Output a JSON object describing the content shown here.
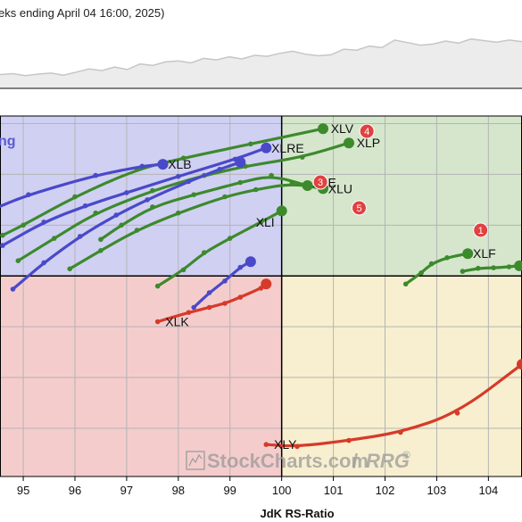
{
  "header": {
    "text": "eks ending April 04 16:00, 2025)"
  },
  "watermark": {
    "brand": "StockCharts.com",
    "slash": "/",
    "product": "RRG",
    "mark": "®"
  },
  "quadrant_labels": {
    "improving_partial": "ng"
  },
  "colors": {
    "improving": "#d0d0f3",
    "leading": "#d5e6cc",
    "weakening": "#f7efcf",
    "lagging": "#f5cccc",
    "grid": "#b4b4b4",
    "axis": "#000000",
    "header_bg": "#ececec",
    "header_line": "#c6c6c6",
    "badge": "#e04141"
  },
  "chart_data": {
    "type": "scatter",
    "title": "",
    "xlabel": "JdK RS-Ratio",
    "ylabel": "",
    "xlim": [
      94.55,
      104.65
    ],
    "ylim": [
      96.05,
      103.15
    ],
    "x_ticks": [
      95,
      96,
      97,
      98,
      99,
      100,
      101,
      102,
      103,
      104
    ],
    "center": {
      "x": 100,
      "y": 100
    },
    "grid": true,
    "series": [
      {
        "name": "XLV",
        "color": "#3c8a2c",
        "points": [
          [
            94.6,
            100.8
          ],
          [
            95.0,
            101.0
          ],
          [
            96.0,
            101.56
          ],
          [
            97.2,
            102.1
          ],
          [
            98.1,
            102.32
          ],
          [
            99.4,
            102.6
          ],
          [
            100.8,
            102.9
          ]
        ]
      },
      {
        "name": "XLP",
        "color": "#3c8a2c",
        "points": [
          [
            94.9,
            100.3
          ],
          [
            95.6,
            100.74
          ],
          [
            96.4,
            101.24
          ],
          [
            97.5,
            101.68
          ],
          [
            98.5,
            101.98
          ],
          [
            99.3,
            102.16
          ],
          [
            100.4,
            102.34
          ],
          [
            101.3,
            102.62
          ]
        ]
      },
      {
        "name": "XLE",
        "color": "#3c8a2c",
        "points": [
          [
            96.5,
            100.72
          ],
          [
            96.9,
            101.0
          ],
          [
            97.5,
            101.36
          ],
          [
            98.3,
            101.6
          ],
          [
            99.2,
            101.84
          ],
          [
            99.8,
            101.98
          ],
          [
            100.5,
            101.78
          ]
        ]
      },
      {
        "name": "XLU",
        "color": "#3c8a2c",
        "points": [
          [
            95.9,
            100.14
          ],
          [
            96.5,
            100.5
          ],
          [
            97.2,
            100.9
          ],
          [
            98.0,
            101.24
          ],
          [
            98.9,
            101.56
          ],
          [
            99.5,
            101.7
          ],
          [
            100.2,
            101.82
          ],
          [
            100.8,
            101.72
          ]
        ]
      },
      {
        "name": "XLI",
        "color": "#3c8a2c",
        "points": [
          [
            97.6,
            99.8
          ],
          [
            98.1,
            100.12
          ],
          [
            98.5,
            100.46
          ],
          [
            99.0,
            100.74
          ],
          [
            99.6,
            101.06
          ],
          [
            100.0,
            101.28
          ]
        ]
      },
      {
        "name": "XLF",
        "color": "#3c8a2c",
        "points": [
          [
            102.4,
            99.84
          ],
          [
            102.7,
            100.06
          ],
          [
            102.9,
            100.24
          ],
          [
            103.2,
            100.36
          ],
          [
            103.6,
            100.44
          ]
        ]
      },
      {
        "name": "XLF2",
        "color": "#3c8a2c",
        "points": [
          [
            103.5,
            100.09
          ],
          [
            103.8,
            100.15
          ],
          [
            104.1,
            100.16
          ],
          [
            104.4,
            100.18
          ],
          [
            104.6,
            100.2
          ]
        ]
      },
      {
        "name": "XLRE",
        "color": "#4a49c9",
        "points": [
          [
            94.6,
            100.6
          ],
          [
            95.4,
            101.06
          ],
          [
            96.2,
            101.38
          ],
          [
            97.0,
            101.64
          ],
          [
            98.0,
            101.96
          ],
          [
            99.1,
            102.3
          ],
          [
            99.7,
            102.52
          ]
        ]
      },
      {
        "name": "XLB",
        "color": "#4a49c9",
        "points": [
          [
            94.5,
            101.35
          ],
          [
            95.1,
            101.6
          ],
          [
            96.4,
            101.98
          ],
          [
            97.3,
            102.16
          ],
          [
            97.7,
            102.2
          ]
        ]
      },
      {
        "name": "XLI_blue",
        "color": "#4a49c9",
        "points": [
          [
            94.8,
            99.74
          ],
          [
            95.4,
            100.26
          ],
          [
            96.1,
            100.78
          ],
          [
            96.8,
            101.2
          ],
          [
            97.4,
            101.5
          ],
          [
            98.2,
            101.86
          ],
          [
            98.8,
            102.1
          ],
          [
            99.2,
            102.24
          ]
        ]
      },
      {
        "name": "XLU_blue",
        "color": "#4a49c9",
        "points": [
          [
            98.3,
            99.38
          ],
          [
            98.6,
            99.67
          ],
          [
            98.9,
            99.9
          ],
          [
            99.2,
            100.17
          ],
          [
            99.4,
            100.28
          ]
        ]
      },
      {
        "name": "XLK",
        "color": "#d63a2a",
        "points": [
          [
            97.6,
            99.1
          ],
          [
            98.2,
            99.28
          ],
          [
            98.6,
            99.38
          ],
          [
            98.9,
            99.46
          ],
          [
            99.2,
            99.58
          ],
          [
            99.6,
            99.76
          ],
          [
            99.7,
            99.84
          ]
        ]
      },
      {
        "name": "XLY",
        "color": "#d63a2a",
        "points": [
          [
            99.7,
            96.68
          ],
          [
            100.3,
            96.64
          ],
          [
            101.3,
            96.76
          ],
          [
            102.3,
            96.92
          ],
          [
            103.4,
            97.3
          ],
          [
            104.65,
            98.26
          ]
        ]
      }
    ],
    "labels": [
      {
        "text": "XLV",
        "x": 100.95,
        "y": 102.9
      },
      {
        "text": "XLP",
        "x": 101.45,
        "y": 102.62
      },
      {
        "text": "XLRE",
        "x": 99.8,
        "y": 102.52
      },
      {
        "text": "XLB",
        "x": 97.8,
        "y": 102.2
      },
      {
        "text": "XLE",
        "x": 100.6,
        "y": 101.84
      },
      {
        "text": "XLU",
        "x": 100.9,
        "y": 101.72
      },
      {
        "text": "XLI",
        "x": 99.5,
        "y": 101.06
      },
      {
        "text": "XLF",
        "x": 103.7,
        "y": 100.44
      },
      {
        "text": "XLK",
        "x": 97.75,
        "y": 99.1
      },
      {
        "text": "XLY",
        "x": 99.85,
        "y": 96.68
      }
    ],
    "badges": [
      {
        "text": "1",
        "x": 103.85,
        "y": 100.9
      },
      {
        "text": "3",
        "x": 100.75,
        "y": 101.85
      },
      {
        "text": "4",
        "x": 101.65,
        "y": 102.85
      },
      {
        "text": "5",
        "x": 101.5,
        "y": 101.34
      }
    ]
  },
  "top_panel": {
    "values": [
      0.2,
      0.22,
      0.18,
      0.21,
      0.23,
      0.19,
      0.25,
      0.31,
      0.28,
      0.35,
      0.3,
      0.41,
      0.38,
      0.45,
      0.47,
      0.43,
      0.52,
      0.49,
      0.55,
      0.51,
      0.58,
      0.56,
      0.62,
      0.66,
      0.6,
      0.57,
      0.59,
      0.7,
      0.68,
      0.76,
      0.73,
      0.88,
      0.83,
      0.78,
      0.8,
      0.86,
      0.82,
      0.9,
      0.87,
      0.84,
      0.88,
      0.85
    ]
  }
}
